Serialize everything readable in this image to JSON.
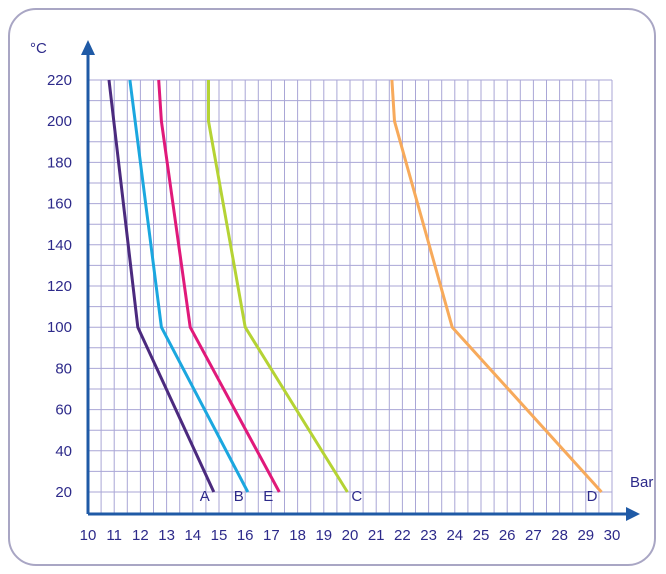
{
  "chart_data": {
    "type": "line",
    "xlabel": "Bar",
    "ylabel": "°C",
    "xlim": [
      10,
      30
    ],
    "ylim": [
      20,
      220
    ],
    "x_ticks": [
      10,
      11,
      12,
      13,
      14,
      15,
      16,
      17,
      18,
      19,
      20,
      21,
      22,
      23,
      24,
      25,
      26,
      27,
      28,
      29,
      30
    ],
    "y_ticks": [
      20,
      40,
      60,
      80,
      100,
      120,
      140,
      160,
      180,
      200,
      220
    ],
    "grid": true,
    "series": [
      {
        "name": "A",
        "color": "#4b2a7e",
        "points": [
          [
            10.8,
            220
          ],
          [
            11.9,
            100
          ],
          [
            14.8,
            20
          ]
        ]
      },
      {
        "name": "B",
        "color": "#1ba7df",
        "points": [
          [
            11.6,
            220
          ],
          [
            12.8,
            100
          ],
          [
            16.1,
            20
          ]
        ]
      },
      {
        "name": "E",
        "color": "#e0197a",
        "points": [
          [
            12.7,
            220
          ],
          [
            12.8,
            200
          ],
          [
            13.9,
            100
          ],
          [
            17.3,
            20
          ]
        ]
      },
      {
        "name": "C",
        "color": "#b5d334",
        "points": [
          [
            14.6,
            220
          ],
          [
            14.6,
            200
          ],
          [
            16.0,
            100
          ],
          [
            19.9,
            20
          ]
        ]
      },
      {
        "name": "D",
        "color": "#f7aa5b",
        "points": [
          [
            21.6,
            220
          ],
          [
            21.7,
            200
          ],
          [
            23.9,
            100
          ],
          [
            29.6,
            20
          ]
        ]
      }
    ]
  }
}
